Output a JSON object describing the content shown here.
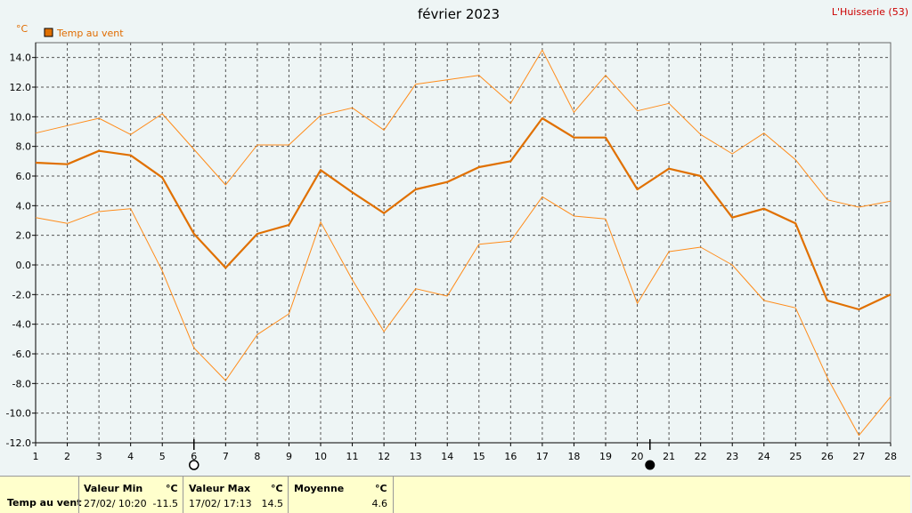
{
  "header": {
    "title": "février 2023",
    "station": "L'Huisserie (53)",
    "unit": "°C"
  },
  "legend": {
    "label": "Temp au vent",
    "color": "#e07000"
  },
  "chart_data": {
    "type": "line",
    "title": "février 2023",
    "ylabel": "°C",
    "xlabel": "",
    "ylim": [
      -12,
      15
    ],
    "yticks": [
      14.0,
      12.0,
      10.0,
      8.0,
      6.0,
      4.0,
      2.0,
      0.0,
      -2.0,
      -4.0,
      -6.0,
      -8.0,
      -10.0,
      -12.0
    ],
    "ytick_labels": [
      "14.0",
      "12.0",
      "10.0",
      "8.0",
      "6.0",
      "4.0",
      "2.0",
      "0.0",
      "-2.0",
      "-4.0",
      "-6.0",
      "-8.0",
      "-10.0",
      "-12.0"
    ],
    "x": [
      1,
      2,
      3,
      4,
      5,
      6,
      7,
      8,
      9,
      10,
      11,
      12,
      13,
      14,
      15,
      16,
      17,
      18,
      19,
      20,
      21,
      22,
      23,
      24,
      25,
      26,
      27,
      28
    ],
    "xtick_labels": [
      "1",
      "2",
      "3",
      "4",
      "5",
      "6",
      "7",
      "8",
      "9",
      "10",
      "11",
      "12",
      "13",
      "14",
      "15",
      "16",
      "17",
      "18",
      "19",
      "20",
      "21",
      "22",
      "23",
      "24",
      "25",
      "26",
      "27",
      "28"
    ],
    "grid": true,
    "legend_position": "top-left",
    "series": [
      {
        "name": "Temp au vent",
        "role": "mean",
        "color": "#e07000",
        "values": [
          6.9,
          6.8,
          7.7,
          7.4,
          5.9,
          2.1,
          -0.2,
          2.1,
          2.7,
          6.4,
          4.9,
          3.5,
          5.1,
          5.6,
          6.6,
          7.0,
          9.9,
          8.6,
          8.6,
          5.1,
          6.5,
          6.0,
          3.2,
          3.8,
          2.8,
          -2.4,
          -3.0,
          -2.0
        ]
      },
      {
        "role": "max",
        "color": "#ff8c1a",
        "values": [
          8.9,
          9.4,
          9.9,
          8.8,
          10.2,
          7.8,
          5.4,
          8.1,
          8.1,
          10.1,
          10.6,
          9.1,
          12.2,
          12.5,
          12.8,
          10.9,
          14.5,
          10.3,
          12.8,
          10.4,
          10.9,
          8.8,
          7.5,
          8.9,
          7.1,
          4.4,
          3.9,
          4.3
        ]
      },
      {
        "role": "min",
        "color": "#ff8c1a",
        "values": [
          3.2,
          2.8,
          3.6,
          3.8,
          -0.4,
          -5.6,
          -7.8,
          -4.7,
          -3.3,
          2.9,
          -1.0,
          -4.5,
          -1.6,
          -2.1,
          1.4,
          1.6,
          4.6,
          3.3,
          3.1,
          -2.6,
          0.9,
          1.2,
          0.0,
          -2.4,
          -2.9,
          -7.6,
          -11.5,
          -8.9
        ]
      }
    ],
    "moon_phases": [
      {
        "day": 6,
        "phase": "full-moon-icon"
      },
      {
        "day": 20.4,
        "phase": "new-moon-icon"
      }
    ]
  },
  "stats": {
    "row_label": "Temp au vent",
    "min_header": "Valeur Min",
    "max_header": "Valeur Max",
    "mean_header": "Moyenne",
    "unit_header": "°C",
    "min_date": "27/02/  10:20",
    "min_value": "-11.5",
    "max_date": "17/02/  17:13",
    "max_value": "14.5",
    "mean_value": "4.6"
  }
}
